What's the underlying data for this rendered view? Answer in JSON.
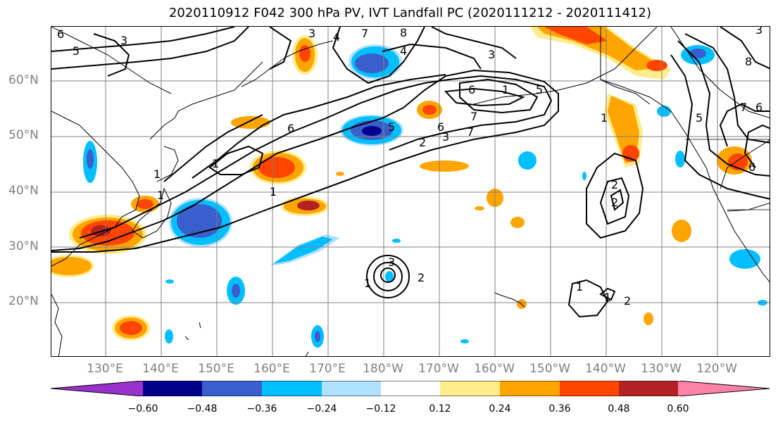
{
  "title": "2020110912 F042 300 hPa PV, IVT Landfall PC (2020111212 - 2020111412)",
  "lat_labels": [
    "60°N",
    "50°N",
    "40°N",
    "30°N",
    "20°N"
  ],
  "lon_labels": [
    "130°E",
    "140°E",
    "150°E",
    "160°E",
    "170°E",
    "180°W",
    "170°W",
    "160°W",
    "150°W",
    "140°W",
    "130°W",
    "120°W"
  ],
  "colorbar": {
    "ticks": [
      "−0.60",
      "−0.48",
      "−0.36",
      "−0.24",
      "−0.12",
      "0.12",
      "0.24",
      "0.36",
      "0.48",
      "0.60"
    ],
    "colors": [
      "#9932CC",
      "#00008B",
      "#3A5FCD",
      "#00BFFF",
      "#B0E2FF",
      "#FFFFFF",
      "#FFEC8B",
      "#FFA500",
      "#FF4500",
      "#B22222",
      "#FF82AB"
    ]
  },
  "contour_labels": [
    "6",
    "5",
    "3",
    "3",
    "4",
    "7",
    "8",
    "4",
    "3",
    "6",
    "7",
    "6",
    "5",
    "2",
    "3",
    "1",
    "1",
    "6",
    "5",
    "7",
    "1",
    "2",
    "2",
    "1",
    "2",
    "3",
    "1",
    "1",
    "1",
    "6",
    "7",
    "5",
    "8",
    "3",
    "6",
    "1",
    "1",
    "2"
  ],
  "colors": {
    "contour": "#000000",
    "grid": "#808080",
    "coast": "#000000"
  }
}
